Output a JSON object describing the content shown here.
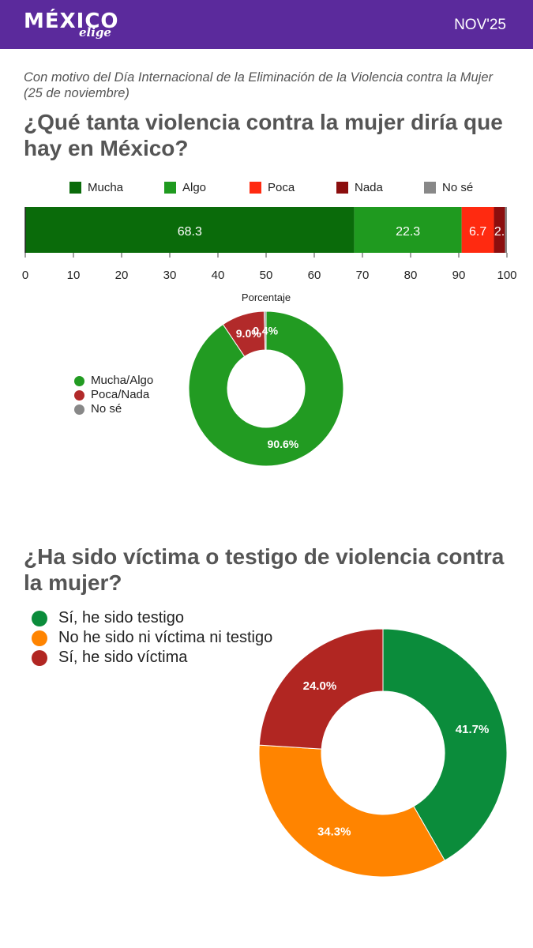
{
  "header": {
    "logo_main": "MÉXICO",
    "logo_sub": "elige",
    "date": "NOV'25"
  },
  "subtitle": "Con motivo del Día Internacional de la Eliminación de la Violencia contra la Mujer (25 de noviembre)",
  "question1": "¿Qué tanta violencia contra la mujer diría que hay en México?",
  "question2": "¿Ha sido víctima o testigo de violencia contra la mujer?",
  "colors": {
    "header": "#5b2a9c"
  },
  "chart_data": [
    {
      "type": "bar",
      "orientation": "horizontal-stacked",
      "series": [
        {
          "name": "Mucha",
          "value": 68.3,
          "label": "68.3",
          "color": "#0a6b0a"
        },
        {
          "name": "Algo",
          "value": 22.3,
          "label": "22.3",
          "color": "#1f9a1f"
        },
        {
          "name": "Poca",
          "value": 6.7,
          "label": "6.7",
          "color": "#ff2a10"
        },
        {
          "name": "Nada",
          "value": 2.3,
          "label": "2.",
          "color": "#8b0e0e"
        },
        {
          "name": "No sé",
          "value": 0.4,
          "label": "",
          "color": "#888888"
        }
      ],
      "xlim": [
        0,
        100
      ],
      "ticks": [
        "0",
        "10",
        "20",
        "30",
        "40",
        "50",
        "60",
        "70",
        "80",
        "90",
        "100"
      ],
      "legend_position": "top"
    },
    {
      "type": "pie",
      "title": "Porcentaje",
      "slices": [
        {
          "name": "Mucha/Algo",
          "value": 90.6,
          "label": "90.6%",
          "color": "#229b22"
        },
        {
          "name": "Poca/Nada",
          "value": 9.0,
          "label": "9.0%",
          "color": "#b22a2a"
        },
        {
          "name": "No sé",
          "value": 0.4,
          "label": "0.4%",
          "color": "#888888"
        }
      ],
      "legend_position": "left"
    },
    {
      "type": "pie",
      "slices": [
        {
          "name": "Sí, he sido testigo",
          "value": 41.7,
          "label": "41.7%",
          "color": "#0b8c3b"
        },
        {
          "name": "No he sido ni víctima ni testigo",
          "value": 34.3,
          "label": "34.3%",
          "color": "#ff8400"
        },
        {
          "name": "Sí, he sido víctima",
          "value": 24.0,
          "label": "24.0%",
          "color": "#b12622"
        }
      ],
      "legend_position": "top-left"
    }
  ]
}
